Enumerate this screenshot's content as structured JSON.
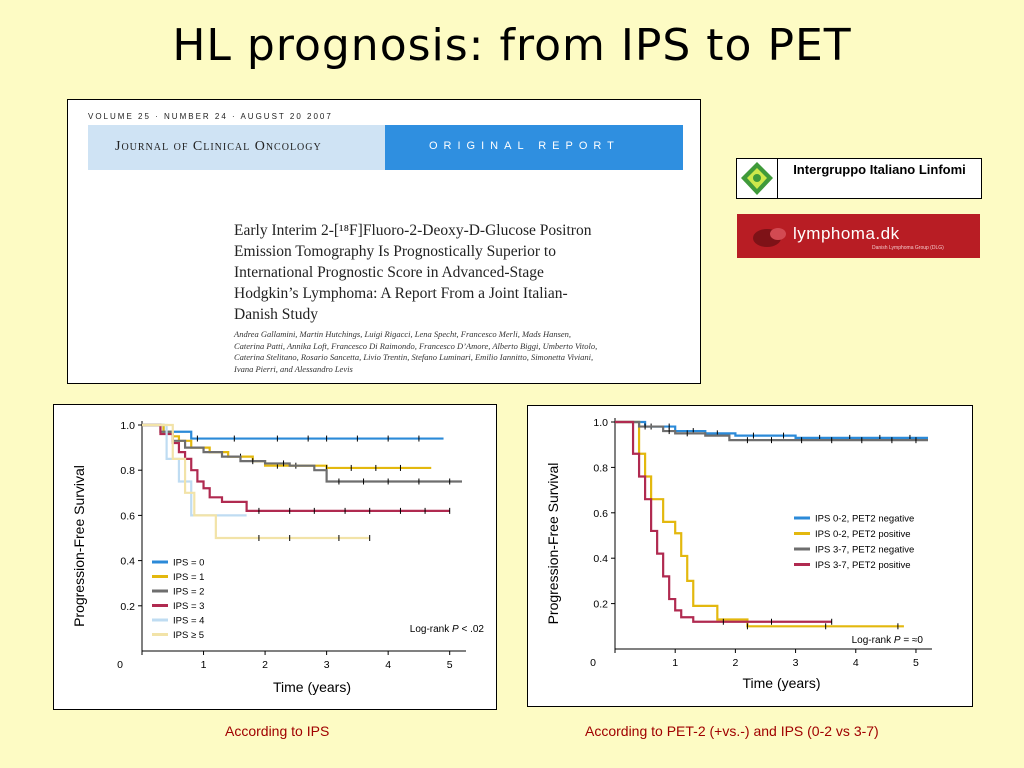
{
  "slide": {
    "title": "HL prognosis: from IPS to PET"
  },
  "journal": {
    "volume_line": "VOLUME 25 · NUMBER 24 · AUGUST 20 2007",
    "name": "Journal of Clinical Oncology",
    "section": "ORIGINAL REPORT",
    "article_title_lines": [
      "Early Interim 2-[¹⁸F]Fluoro-2-Deoxy-D-Glucose Positron",
      "Emission Tomography Is Prognostically Superior to",
      "International Prognostic Score in Advanced-Stage",
      "Hodgkin’s Lymphoma: A Report From a Joint Italian-",
      "Danish Study"
    ],
    "author_lines": [
      "Andrea Gallamini, Martin Hutchings, Luigi Rigacci, Lena Specht, Francesco Merli, Mads Hansen,",
      "Caterina Patti, Annika Loft, Francesco Di Raimondo, Francesco D’Amore, Alberto Biggi, Umberto Vitolo,",
      "Caterina Stelitano, Rosario Sancetta, Livio Trentin, Stefano Luminari, Emilio Iannitto, Simonetta Viviani,",
      "Ivana Pierri, and Alessandro Levis"
    ]
  },
  "logos": {
    "intergruppo": "Intergruppo Italiano Linfomi",
    "lymphoma": "lymphoma.dk",
    "lymphoma_sub": "Danish Lymphoma Group (DLG)"
  },
  "captions": {
    "left": "According to IPS",
    "right": "According to PET-2 (+vs.-) and IPS (0-2 vs 3-7)"
  },
  "chart_data": [
    {
      "type": "line",
      "subtype": "step",
      "xlabel": "Time (years)",
      "ylabel": "Progression-Free Survival",
      "xlim": [
        0,
        5.2
      ],
      "ylim": [
        0,
        1.0
      ],
      "xticks": [
        0,
        1,
        2,
        3,
        4,
        5
      ],
      "yticks": [
        0.2,
        0.4,
        0.6,
        0.8,
        1.0
      ],
      "x0_label": "0",
      "legend_position": "lower-left",
      "annotation": {
        "prefix": "Log-rank ",
        "italic": "P",
        "suffix": " < .02"
      },
      "series": [
        {
          "name": "IPS = 0",
          "color": "#2b8ad8",
          "x": [
            0,
            0.35,
            0.8,
            4.9
          ],
          "y": [
            1.0,
            0.97,
            0.94,
            0.94
          ],
          "censor_x": [
            0.9,
            1.5,
            2.2,
            2.7,
            3.0,
            3.5,
            4.0,
            4.5
          ]
        },
        {
          "name": "IPS = 1",
          "color": "#e3b80e",
          "x": [
            0,
            0.35,
            0.5,
            0.6,
            0.8,
            1.1,
            1.4,
            1.8,
            2.0,
            3.0,
            4.7
          ],
          "y": [
            1.0,
            0.97,
            0.95,
            0.93,
            0.9,
            0.88,
            0.86,
            0.84,
            0.82,
            0.81,
            0.81
          ],
          "censor_x": [
            1.6,
            2.2,
            2.5,
            3.0,
            3.4,
            3.8,
            4.2
          ]
        },
        {
          "name": "IPS = 2",
          "color": "#6e6e6e",
          "x": [
            0,
            0.3,
            0.5,
            0.7,
            1.0,
            1.3,
            1.6,
            2.0,
            2.4,
            2.8,
            3.0,
            5.2
          ],
          "y": [
            1.0,
            0.97,
            0.93,
            0.9,
            0.88,
            0.86,
            0.84,
            0.83,
            0.82,
            0.8,
            0.75,
            0.75
          ],
          "censor_x": [
            1.8,
            2.3,
            3.2,
            3.6,
            4.0,
            4.5,
            5.0
          ]
        },
        {
          "name": "IPS = 3",
          "color": "#b02a50",
          "x": [
            0,
            0.3,
            0.5,
            0.6,
            0.7,
            0.8,
            0.9,
            1.0,
            1.1,
            1.3,
            1.7,
            5.0
          ],
          "y": [
            1.0,
            0.96,
            0.92,
            0.88,
            0.85,
            0.8,
            0.75,
            0.72,
            0.68,
            0.66,
            0.62,
            0.62
          ],
          "censor_x": [
            1.9,
            2.4,
            2.8,
            3.3,
            3.7,
            4.2,
            4.6,
            5.0
          ]
        },
        {
          "name": "IPS = 4",
          "color": "#bfdcf2",
          "x": [
            0,
            0.4,
            0.6,
            0.8,
            1.2,
            1.7
          ],
          "y": [
            1.0,
            0.85,
            0.75,
            0.6,
            0.6,
            0.6
          ],
          "censor_x": []
        },
        {
          "name": "IPS ≥ 5",
          "color": "#f2e3a8",
          "x": [
            0,
            0.5,
            0.7,
            0.85,
            1.2,
            3.7
          ],
          "y": [
            1.0,
            0.85,
            0.7,
            0.6,
            0.5,
            0.5
          ],
          "censor_x": [
            1.9,
            2.4,
            3.2,
            3.7
          ]
        }
      ]
    },
    {
      "type": "line",
      "subtype": "step",
      "xlabel": "Time (years)",
      "ylabel": "Progression-Free Survival",
      "xlim": [
        0,
        5.2
      ],
      "ylim": [
        0,
        1.0
      ],
      "xticks": [
        0,
        1,
        2,
        3,
        4,
        5
      ],
      "yticks": [
        0.2,
        0.4,
        0.6,
        0.8,
        1.0
      ],
      "x0_label": "0",
      "legend_position": "middle-right",
      "annotation": {
        "prefix": "Log-rank ",
        "italic": "P",
        "suffix": " = ≈0"
      },
      "series": [
        {
          "name": "IPS 0-2, PET2 negative",
          "color": "#2b8ad8",
          "x": [
            0,
            0.5,
            1.0,
            1.5,
            2.0,
            3.0,
            5.2
          ],
          "y": [
            1.0,
            0.98,
            0.96,
            0.95,
            0.94,
            0.93,
            0.93
          ],
          "censor_x": [
            0.6,
            0.9,
            1.3,
            1.7,
            2.3,
            2.8,
            3.4,
            3.9,
            4.4,
            4.9
          ]
        },
        {
          "name": "IPS 0-2, PET2 positive",
          "color": "#e3b80e",
          "x": [
            0,
            0.4,
            0.5,
            0.6,
            0.8,
            1.0,
            1.1,
            1.2,
            1.3,
            1.7,
            2.2,
            4.8
          ],
          "y": [
            1.0,
            0.86,
            0.76,
            0.66,
            0.56,
            0.51,
            0.41,
            0.3,
            0.19,
            0.13,
            0.1,
            0.1
          ],
          "censor_x": [
            2.2,
            3.5,
            4.7
          ]
        },
        {
          "name": "IPS 3-7, PET2 negative",
          "color": "#6e6e6e",
          "x": [
            0,
            0.4,
            0.8,
            1.0,
            1.5,
            1.9,
            3.0,
            5.2
          ],
          "y": [
            1.0,
            0.98,
            0.96,
            0.95,
            0.94,
            0.92,
            0.92,
            0.92
          ],
          "censor_x": [
            0.5,
            0.9,
            1.2,
            2.2,
            2.6,
            3.1,
            3.6,
            4.1,
            4.6,
            5.0
          ]
        },
        {
          "name": "IPS 3-7, PET2 positive",
          "color": "#b02a50",
          "x": [
            0,
            0.3,
            0.4,
            0.5,
            0.6,
            0.7,
            0.8,
            0.9,
            1.0,
            1.1,
            1.3,
            3.6
          ],
          "y": [
            1.0,
            0.86,
            0.76,
            0.66,
            0.52,
            0.42,
            0.32,
            0.22,
            0.17,
            0.14,
            0.12,
            0.12
          ],
          "censor_x": [
            1.8,
            2.6,
            3.6
          ]
        }
      ]
    }
  ]
}
